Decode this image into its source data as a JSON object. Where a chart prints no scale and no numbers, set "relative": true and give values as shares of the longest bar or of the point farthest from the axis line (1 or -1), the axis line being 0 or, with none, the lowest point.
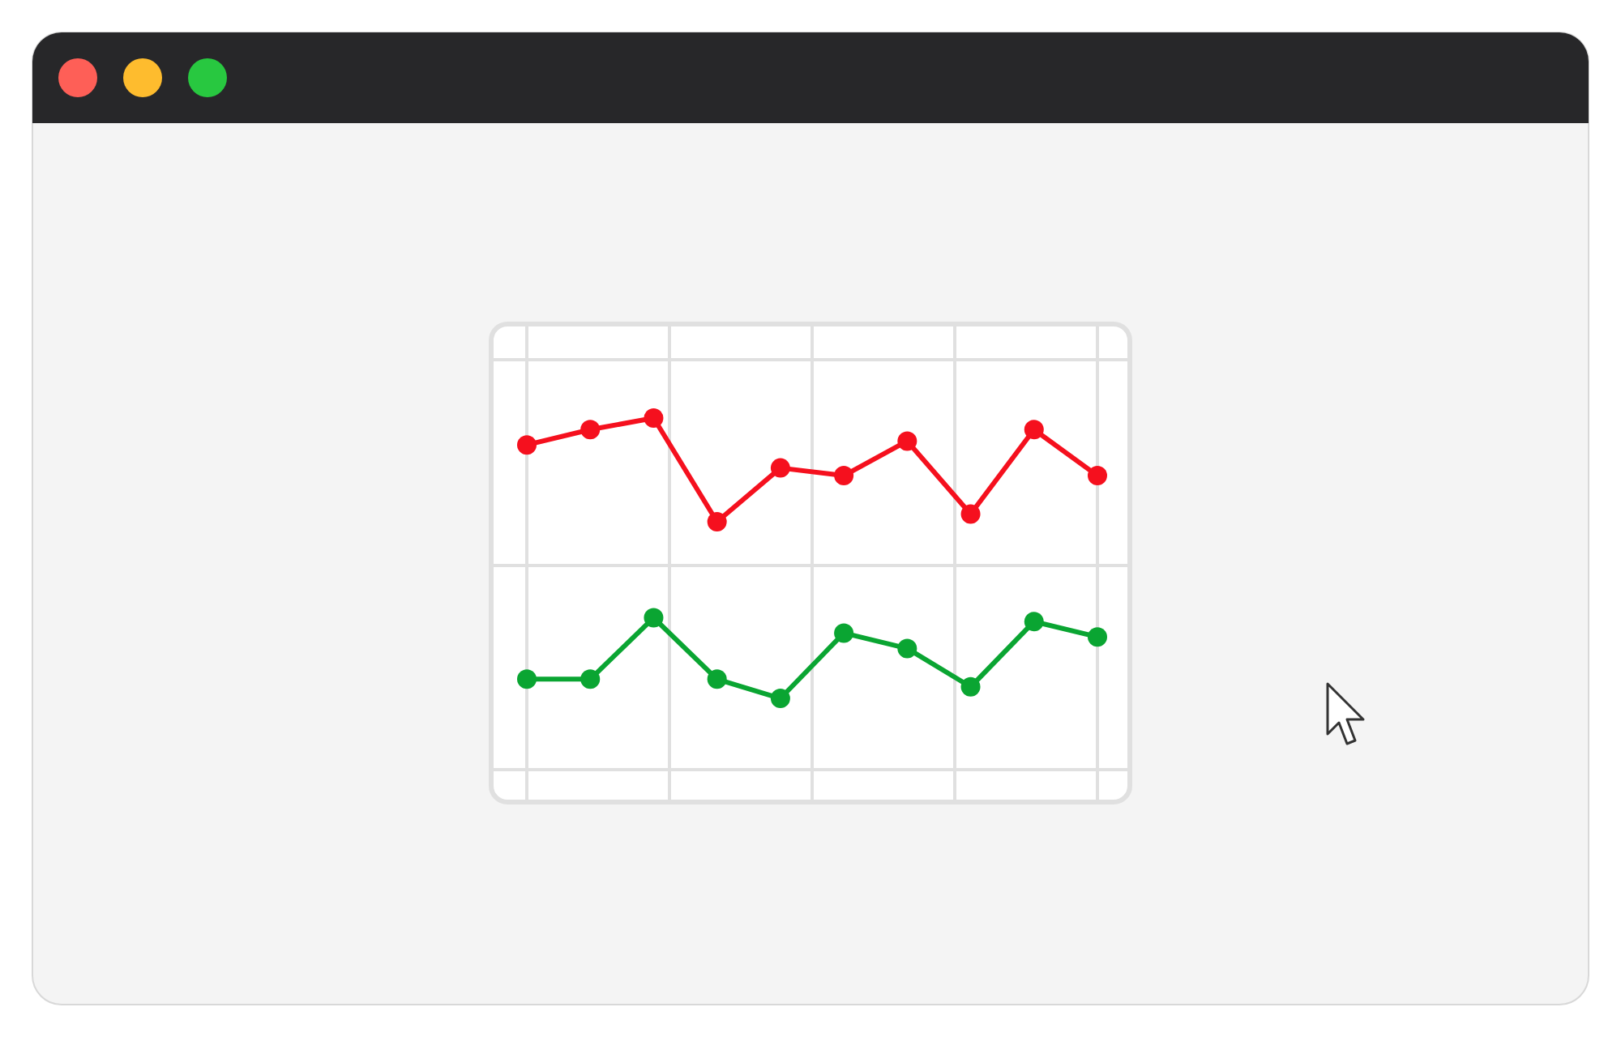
{
  "chart_data": {
    "type": "line",
    "relative": true,
    "grid": true,
    "marker": "circle",
    "line_style": "solid",
    "categories": [
      null,
      null,
      null,
      null,
      null,
      null,
      null,
      null,
      null,
      null
    ],
    "series": [
      {
        "color": "#f5101e",
        "values": [
          0.93,
          0.97,
          1,
          0.73,
          0.87,
          0.85,
          0.94,
          0.75,
          0.97,
          0.85
        ]
      },
      {
        "color": "#0aa532",
        "values": [
          0.32,
          0.32,
          0.48,
          0.32,
          0.27,
          0.44,
          0.4,
          0.3,
          0.47,
          0.43
        ]
      }
    ]
  }
}
